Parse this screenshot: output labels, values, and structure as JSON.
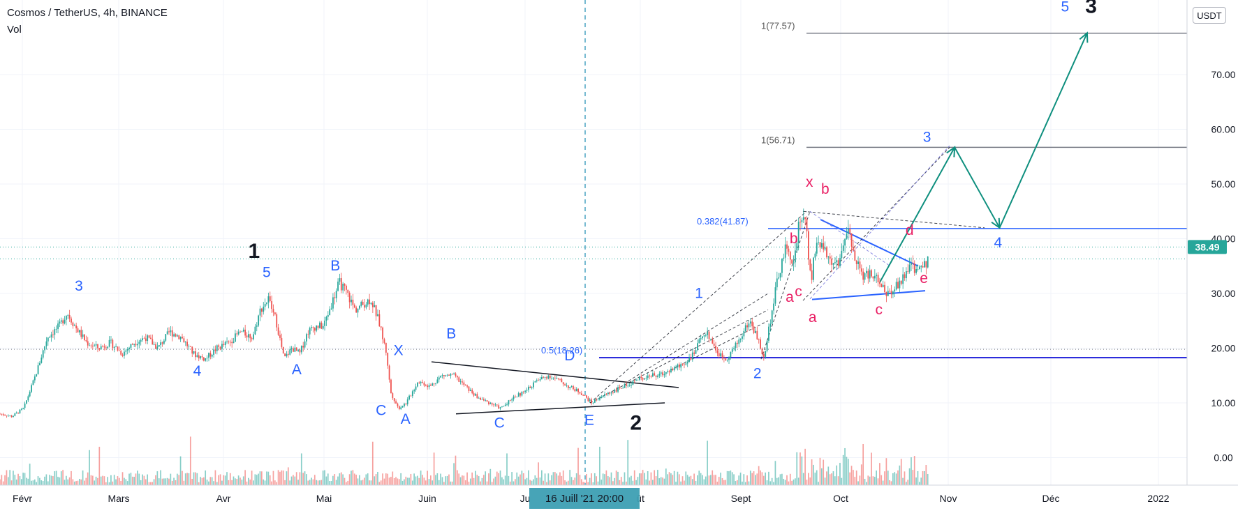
{
  "header": {
    "title": "Cosmos / TetherUS, 4h, BINANCE",
    "indicator": "Vol",
    "currency_badge": "USDT"
  },
  "colors": {
    "up": "#26a69a",
    "down": "#ef5350",
    "blue_label": "#2962ff",
    "pink_label": "#e91e63",
    "teal_arrow": "#0e8f7e",
    "dark_line": "#131722",
    "price_badge": "#26a69a",
    "crosshair": "#4aa3c2"
  },
  "chart_data": {
    "type": "candlestick",
    "title": "Cosmos / TetherUS, 4h, BINANCE",
    "ylim": [
      -5,
      85
    ],
    "y_ticks": [
      "0.00",
      "10.00",
      "20.00",
      "30.00",
      "40.00",
      "50.00",
      "60.00",
      "70.00"
    ],
    "x_labels": [
      "Févr",
      "Mars",
      "Avr",
      "Mai",
      "Juin",
      "Ju",
      "ût",
      "Sept",
      "Oct",
      "Nov",
      "Déc",
      "2022"
    ],
    "last_price": "38.49",
    "crosshair_label": "16 Juill '21   20:00",
    "price_path": [
      [
        0,
        8
      ],
      [
        15,
        7.5
      ],
      [
        30,
        9
      ],
      [
        45,
        15
      ],
      [
        60,
        22
      ],
      [
        75,
        24
      ],
      [
        85,
        26.5
      ],
      [
        95,
        24
      ],
      [
        110,
        21
      ],
      [
        125,
        20
      ],
      [
        140,
        21
      ],
      [
        155,
        19
      ],
      [
        170,
        21
      ],
      [
        185,
        22
      ],
      [
        200,
        20
      ],
      [
        215,
        23
      ],
      [
        230,
        22
      ],
      [
        245,
        19
      ],
      [
        260,
        18
      ],
      [
        275,
        20
      ],
      [
        290,
        21
      ],
      [
        305,
        23
      ],
      [
        320,
        22
      ],
      [
        330,
        27
      ],
      [
        340,
        29
      ],
      [
        350,
        25
      ],
      [
        360,
        18
      ],
      [
        370,
        20
      ],
      [
        380,
        19
      ],
      [
        390,
        23
      ],
      [
        400,
        24
      ],
      [
        410,
        24
      ],
      [
        420,
        28
      ],
      [
        430,
        32
      ],
      [
        440,
        30
      ],
      [
        450,
        27
      ],
      [
        460,
        28
      ],
      [
        470,
        29
      ],
      [
        480,
        25
      ],
      [
        490,
        19
      ],
      [
        495,
        12
      ],
      [
        505,
        9
      ],
      [
        515,
        10
      ],
      [
        530,
        14
      ],
      [
        545,
        13
      ],
      [
        560,
        15
      ],
      [
        575,
        15
      ],
      [
        590,
        13
      ],
      [
        605,
        11
      ],
      [
        620,
        10
      ],
      [
        635,
        9
      ],
      [
        650,
        11
      ],
      [
        665,
        12
      ],
      [
        680,
        14
      ],
      [
        695,
        15
      ],
      [
        710,
        14
      ],
      [
        720,
        13
      ],
      [
        735,
        12
      ],
      [
        750,
        10
      ],
      [
        760,
        11
      ],
      [
        775,
        12
      ],
      [
        790,
        13
      ],
      [
        805,
        14
      ],
      [
        820,
        15
      ],
      [
        835,
        15
      ],
      [
        850,
        16
      ],
      [
        865,
        17
      ],
      [
        880,
        19
      ],
      [
        892,
        23
      ],
      [
        900,
        22
      ],
      [
        910,
        19
      ],
      [
        920,
        18
      ],
      [
        935,
        21
      ],
      [
        950,
        25
      ],
      [
        960,
        22
      ],
      [
        968,
        18
      ],
      [
        975,
        24
      ],
      [
        985,
        32
      ],
      [
        995,
        38
      ],
      [
        1005,
        36
      ],
      [
        1012,
        42
      ],
      [
        1020,
        45
      ],
      [
        1028,
        32
      ],
      [
        1035,
        40
      ],
      [
        1045,
        38
      ],
      [
        1055,
        35
      ],
      [
        1065,
        36
      ],
      [
        1075,
        41
      ],
      [
        1085,
        36
      ],
      [
        1095,
        33
      ],
      [
        1105,
        34
      ],
      [
        1115,
        32
      ],
      [
        1125,
        30
      ],
      [
        1135,
        31
      ],
      [
        1145,
        33
      ],
      [
        1155,
        35
      ],
      [
        1165,
        34
      ],
      [
        1175,
        36
      ],
      [
        1178,
        38
      ]
    ],
    "levels": [
      {
        "label": "1(77.57)",
        "value": 77.57
      },
      {
        "label": "1(56.71)",
        "value": 56.71
      },
      {
        "label": "0.382(41.87)",
        "value": 41.87
      },
      {
        "label": "0.5(18.26)",
        "value": 18.26
      }
    ],
    "wave_labels": [
      {
        "text": "3",
        "x": 100,
        "y": 30.5,
        "color": "blue"
      },
      {
        "text": "4",
        "x": 250,
        "y": 15,
        "color": "blue"
      },
      {
        "text": "5",
        "x": 338,
        "y": 33,
        "color": "blue"
      },
      {
        "text": "1",
        "x": 322,
        "y": 36.5,
        "color": "black",
        "big": true
      },
      {
        "text": "A",
        "x": 376,
        "y": 15.2,
        "color": "blue"
      },
      {
        "text": "B",
        "x": 425,
        "y": 34.2,
        "color": "blue"
      },
      {
        "text": "X",
        "x": 505,
        "y": 18.7,
        "color": "blue"
      },
      {
        "text": "C",
        "x": 483,
        "y": 7.8,
        "color": "blue"
      },
      {
        "text": "A",
        "x": 514,
        "y": 6.2,
        "color": "blue"
      },
      {
        "text": "B",
        "x": 572,
        "y": 21.8,
        "color": "blue"
      },
      {
        "text": "C",
        "x": 633,
        "y": 5.5,
        "color": "blue"
      },
      {
        "text": "D",
        "x": 722,
        "y": 17.8,
        "color": "blue"
      },
      {
        "text": "E",
        "x": 747,
        "y": 6,
        "color": "blue"
      },
      {
        "text": "2",
        "x": 806,
        "y": 5.1,
        "color": "black",
        "big": true
      },
      {
        "text": "1",
        "x": 886,
        "y": 29.2,
        "color": "blue"
      },
      {
        "text": "2",
        "x": 960,
        "y": 14.5,
        "color": "blue"
      },
      {
        "text": "b",
        "x": 1006,
        "y": 39.2,
        "color": "pink"
      },
      {
        "text": "a",
        "x": 1001,
        "y": 28.5,
        "color": "pink"
      },
      {
        "text": "c",
        "x": 1012,
        "y": 29.5,
        "color": "pink"
      },
      {
        "text": "a",
        "x": 1030,
        "y": 24.8,
        "color": "pink"
      },
      {
        "text": "x",
        "x": 1026,
        "y": 49.5,
        "color": "pink"
      },
      {
        "text": "b",
        "x": 1046,
        "y": 48.2,
        "color": "pink"
      },
      {
        "text": "d",
        "x": 1153,
        "y": 40.7,
        "color": "pink"
      },
      {
        "text": "c",
        "x": 1114,
        "y": 26.2,
        "color": "pink"
      },
      {
        "text": "e",
        "x": 1171,
        "y": 31.9,
        "color": "pink"
      },
      {
        "text": "3",
        "x": 1175,
        "y": 57.7,
        "color": "blue"
      },
      {
        "text": "4",
        "x": 1265,
        "y": 38.4,
        "color": "blue"
      },
      {
        "text": "5",
        "x": 1350,
        "y": 81.5,
        "color": "blue"
      },
      {
        "text": "3",
        "x": 1383,
        "y": 81.3,
        "color": "black",
        "big": true
      }
    ],
    "projection_path": [
      [
        1115,
        32
      ],
      [
        1210,
        56.7
      ],
      [
        1267,
        42
      ],
      [
        1378,
        77.6
      ]
    ]
  }
}
